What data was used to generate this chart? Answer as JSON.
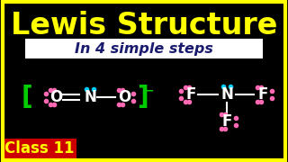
{
  "bg_color": "#000000",
  "title_text": "Lewis Structure",
  "title_color": "#ffff00",
  "subtitle_text": "In 4 simple steps",
  "subtitle_bg": "#ffffff",
  "subtitle_color": "#1a1a6e",
  "class_bg": "#cc0000",
  "class_text": "Class 11",
  "class_text_color": "#ffff00",
  "bracket_color": "#00cc00",
  "bond_color": "#ffffff",
  "atom_color": "#ffffff",
  "dot_pink": "#ff69b4",
  "dot_cyan": "#00ccff",
  "minus_color": "#00cc00"
}
